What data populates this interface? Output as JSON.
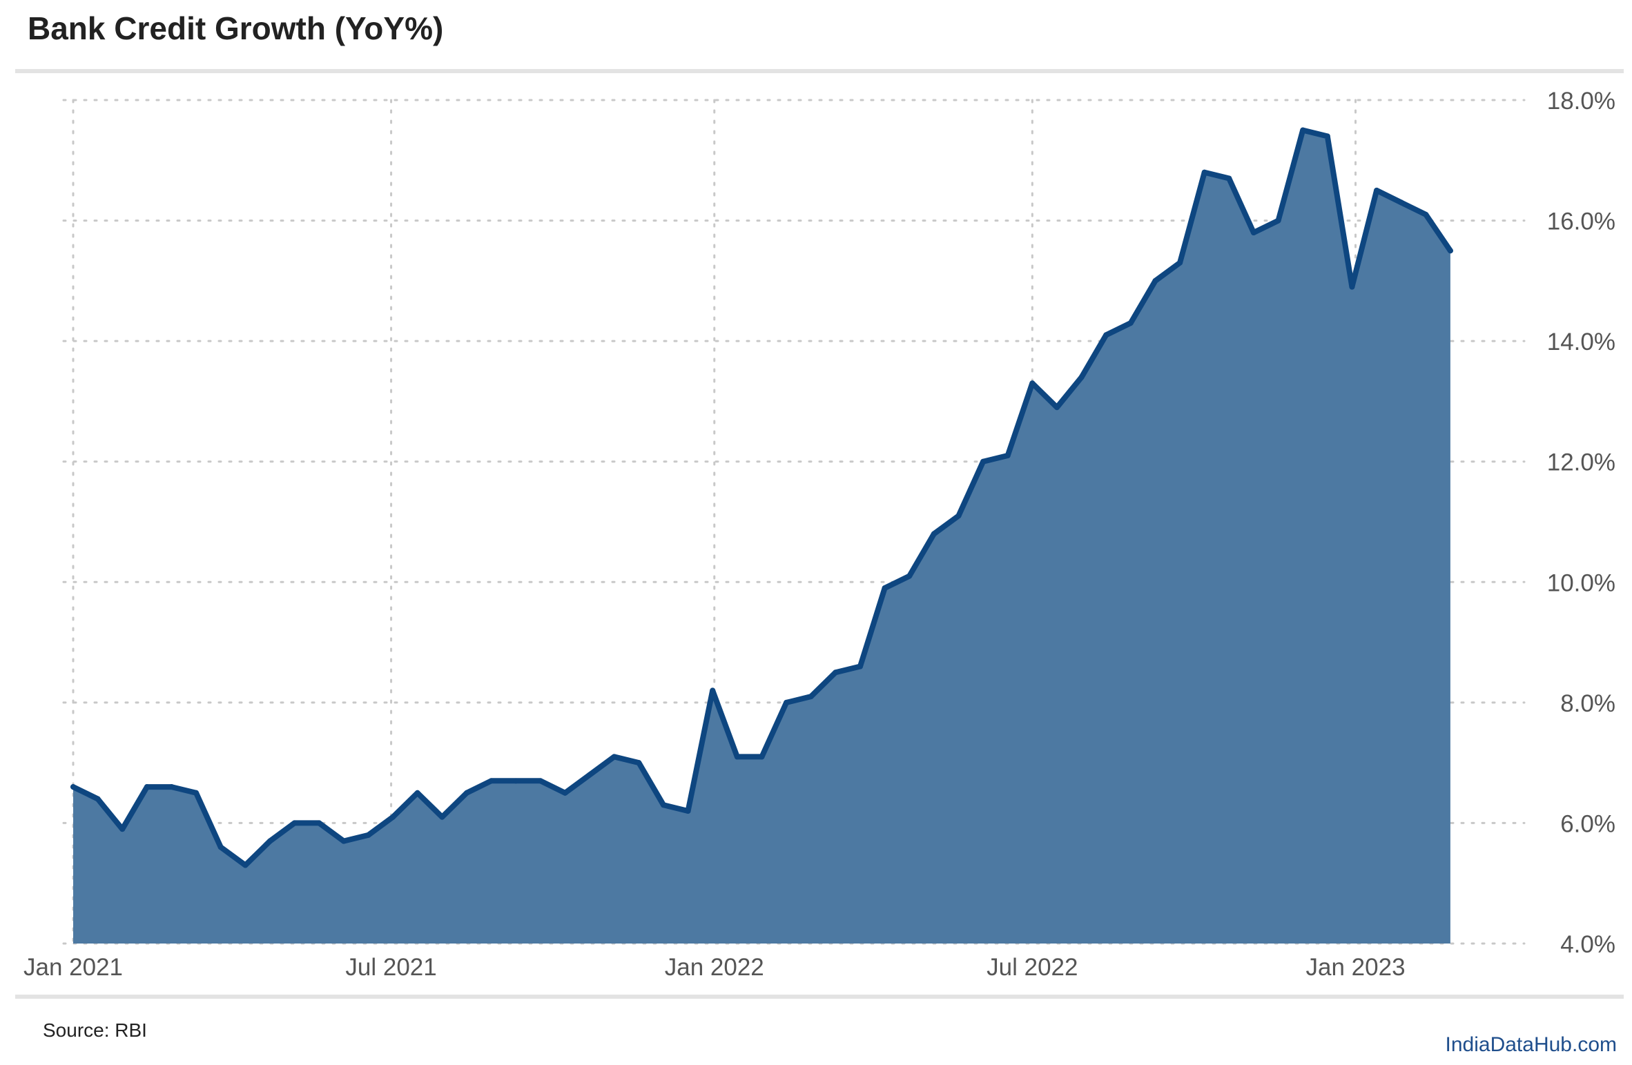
{
  "title": "Bank Credit Growth (YoY%)",
  "source": "Source: RBI",
  "brand": "IndiaDataHub.com",
  "colors": {
    "line": "#0e4680",
    "area": "#4d79a2",
    "grid": "#c8c8c8",
    "rule": "#e3e3e3",
    "tick_text": "#555555",
    "brand": "#1f4e8c"
  },
  "chart_data": {
    "type": "area",
    "title": "Bank Credit Growth (YoY%)",
    "xlabel": "",
    "ylabel": "",
    "x_ticks": [
      "Jan 2021",
      "Jul 2021",
      "Jan 2022",
      "Jul 2022",
      "Jan 2023"
    ],
    "y_ticks": [
      "4.0%",
      "6.0%",
      "8.0%",
      "10.0%",
      "12.0%",
      "14.0%",
      "16.0%",
      "18.0%"
    ],
    "ylim": [
      4,
      18
    ],
    "xlim": [
      "2021-01-01",
      "2023-03-31"
    ],
    "y_axis_position": "right",
    "grid": "dotted",
    "legend": "none",
    "series": [
      {
        "x": [
          "2021-01-01",
          "2021-01-15",
          "2021-01-29",
          "2021-02-12",
          "2021-02-26",
          "2021-03-12",
          "2021-03-26",
          "2021-04-09",
          "2021-04-23",
          "2021-05-07",
          "2021-05-21",
          "2021-06-04",
          "2021-06-18",
          "2021-07-02",
          "2021-07-16",
          "2021-07-30",
          "2021-08-13",
          "2021-08-27",
          "2021-09-10",
          "2021-09-24",
          "2021-10-08",
          "2021-10-22",
          "2021-11-05",
          "2021-11-19",
          "2021-12-03",
          "2021-12-17",
          "2021-12-31",
          "2022-01-14",
          "2022-01-28",
          "2022-02-11",
          "2022-02-25",
          "2022-03-11",
          "2022-03-25",
          "2022-04-08",
          "2022-04-22",
          "2022-05-06",
          "2022-05-20",
          "2022-06-03",
          "2022-06-17",
          "2022-07-01",
          "2022-07-15",
          "2022-07-29",
          "2022-08-12",
          "2022-08-26",
          "2022-09-09",
          "2022-09-23",
          "2022-10-07",
          "2022-10-21",
          "2022-11-04",
          "2022-11-18",
          "2022-12-02",
          "2022-12-16",
          "2022-12-30",
          "2023-01-13",
          "2023-01-27",
          "2023-02-10",
          "2023-02-24"
        ],
        "values": [
          6.6,
          6.4,
          5.9,
          6.6,
          6.6,
          6.5,
          5.6,
          5.3,
          5.7,
          6.0,
          6.0,
          5.7,
          5.8,
          6.1,
          6.5,
          6.1,
          6.5,
          6.7,
          6.7,
          6.7,
          6.5,
          6.8,
          7.1,
          7.0,
          6.3,
          6.2,
          8.2,
          7.1,
          7.1,
          8.0,
          8.1,
          8.5,
          8.6,
          9.9,
          10.1,
          10.8,
          11.1,
          12.0,
          12.1,
          13.3,
          12.9,
          13.4,
          14.1,
          14.3,
          15.0,
          15.3,
          16.8,
          16.7,
          15.8,
          16.0,
          17.5,
          17.4,
          14.9,
          16.5,
          16.3,
          16.1,
          15.5
        ]
      }
    ]
  }
}
